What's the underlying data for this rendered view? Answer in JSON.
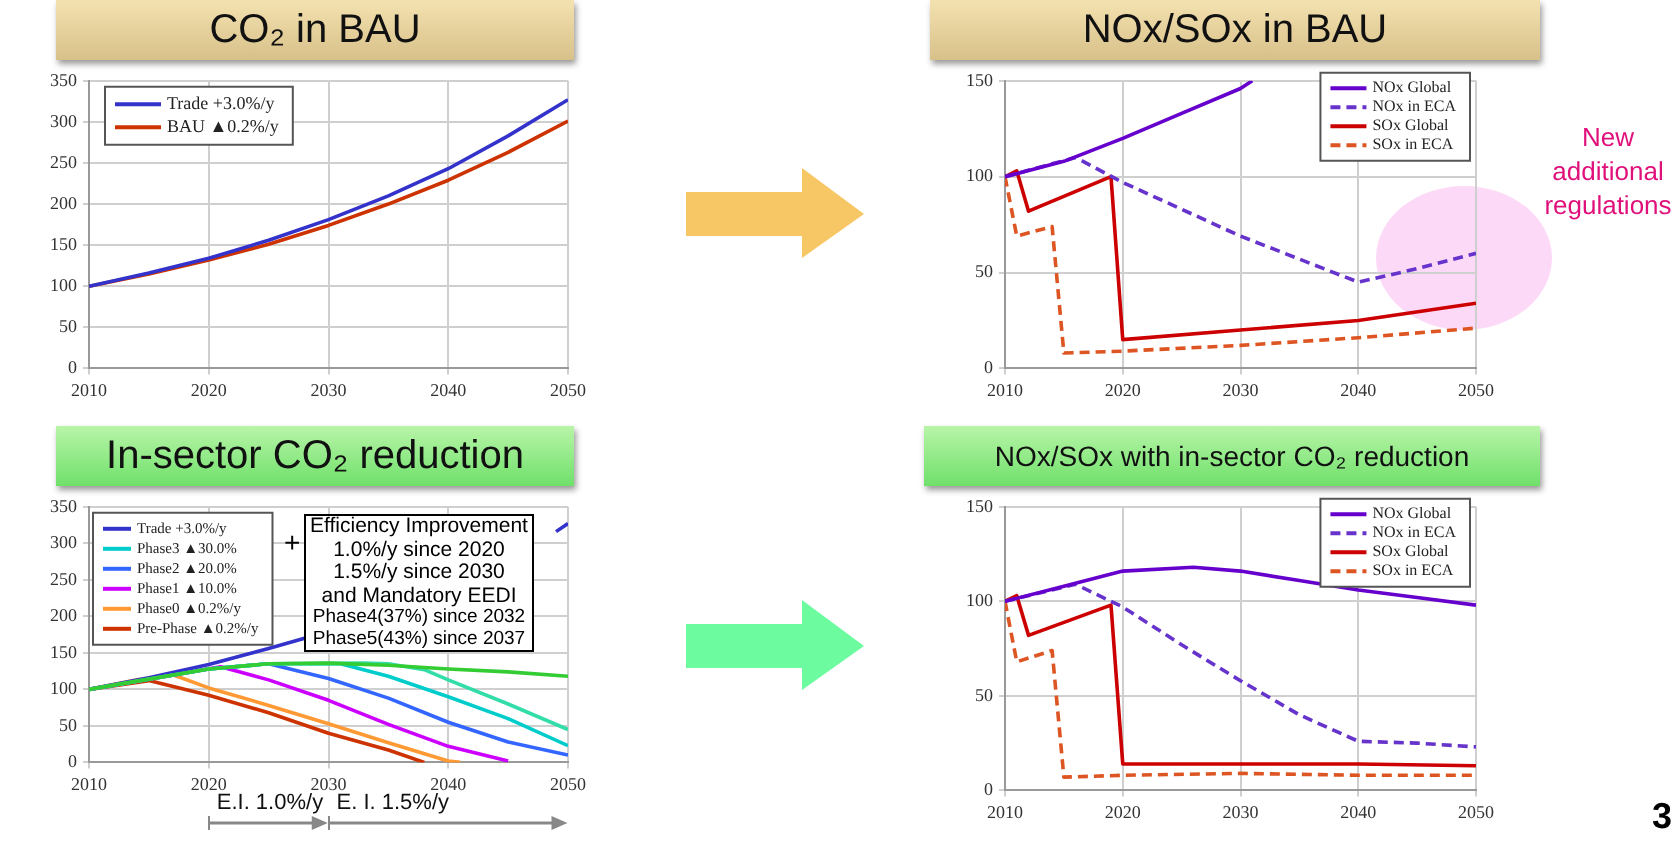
{
  "chart_data": [
    {
      "type": "line",
      "title": "CO₂ in BAU",
      "xlim": [
        2010,
        2050
      ],
      "ylim": [
        0,
        350
      ],
      "xticks": [
        2010,
        2020,
        2030,
        2040,
        2050
      ],
      "yticks": [
        0,
        50,
        100,
        150,
        200,
        250,
        300,
        350
      ],
      "grid": true,
      "legend": "top left",
      "series": [
        {
          "name": "Trade +3.0%/y",
          "color": "#3333cc",
          "x": [
            2010,
            2015,
            2020,
            2025,
            2030,
            2035,
            2040,
            2045,
            2050
          ],
          "values": [
            100,
            116,
            134,
            156,
            181,
            210,
            243,
            283,
            327
          ]
        },
        {
          "name": "BAU ▲0.2%/y",
          "color": "#cc3300",
          "x": [
            2010,
            2015,
            2020,
            2025,
            2030,
            2035,
            2040,
            2045,
            2050
          ],
          "values": [
            100,
            115,
            132,
            151,
            174,
            200,
            229,
            263,
            301
          ]
        }
      ]
    },
    {
      "type": "line",
      "title": "NOx/SOx  in BAU",
      "xlim": [
        2010,
        2050
      ],
      "ylim": [
        0,
        150
      ],
      "xticks": [
        2010,
        2020,
        2030,
        2040,
        2050
      ],
      "yticks": [
        0,
        50,
        100,
        150
      ],
      "grid": true,
      "legend": "top right",
      "annotations": [
        "New additional regulations"
      ],
      "series": [
        {
          "name": "NOx Global",
          "color": "#6600cc",
          "line_style": "solid",
          "x": [
            2010,
            2015,
            2020,
            2025,
            2030,
            2031
          ],
          "values": [
            100,
            108,
            120,
            133,
            146,
            150
          ]
        },
        {
          "name": "NOx in ECA",
          "color": "#6633cc",
          "line_style": "dashed",
          "x": [
            2010,
            2016,
            2020,
            2025,
            2030,
            2035,
            2040,
            2045,
            2050
          ],
          "values": [
            100,
            110,
            97,
            83,
            69,
            57,
            45,
            52,
            60
          ]
        },
        {
          "name": "SOx Global",
          "color": "#cc0000",
          "line_style": "solid",
          "x": [
            2010,
            2011,
            2012,
            2019,
            2020,
            2030,
            2040,
            2050
          ],
          "values": [
            100,
            103,
            82,
            100,
            15,
            20,
            25,
            34
          ]
        },
        {
          "name": "SOx in ECA",
          "color": "#dd5522",
          "line_style": "dashed",
          "x": [
            2010,
            2011,
            2014,
            2015,
            2020,
            2030,
            2040,
            2050
          ],
          "values": [
            100,
            69,
            74,
            8,
            9,
            12,
            16,
            21
          ]
        }
      ]
    },
    {
      "type": "line",
      "title": "In-sector CO₂ reduction",
      "xlim": [
        2010,
        2050
      ],
      "ylim": [
        0,
        350
      ],
      "xticks": [
        2010,
        2020,
        2030,
        2040,
        2050
      ],
      "yticks": [
        0,
        50,
        100,
        150,
        200,
        250,
        300,
        350
      ],
      "grid": true,
      "legend": "top left",
      "annotations": [
        "+",
        "Efficiency Improvement",
        "1.0%/y since 2020",
        "1.5%/y since 2030",
        "and Mandatory EEDI",
        "Phase4(37%) since 2032",
        "Phase5(43%) since 2037",
        "E.I. 1.0%/y",
        "E. I. 1.5%/y"
      ],
      "series": [
        {
          "color": "#33cc33",
          "x": [
            2010,
            2015,
            2020,
            2025,
            2030,
            2035,
            2040,
            2045,
            2050
          ],
          "values": [
            100,
            114,
            128,
            135,
            136,
            133,
            128,
            124,
            118
          ]
        },
        {
          "color": "#33ddaa",
          "x": [
            2010,
            2015,
            2020,
            2025,
            2033,
            2035,
            2038,
            2040,
            2045,
            2050
          ],
          "values": [
            100,
            114,
            128,
            135,
            136,
            135,
            127,
            113,
            80,
            45
          ]
        },
        {
          "name": "Trade +3.0%/y",
          "color": "#3333cc",
          "x": [
            2010,
            2015,
            2020,
            2025,
            2028,
            2038,
            2049,
            2050
          ],
          "values": [
            100,
            116,
            134,
            156,
            170,
            null,
            316,
            327
          ]
        },
        {
          "name": "Phase3 ▲30.0%",
          "color": "#00cccc",
          "x": [
            2020,
            2025,
            2031,
            2035,
            2040,
            2045,
            2050
          ],
          "values": [
            128,
            135,
            135,
            118,
            90,
            60,
            23
          ]
        },
        {
          "name": "Phase2 ▲20.0%",
          "color": "#3366ff",
          "x": [
            2010,
            2015,
            2020,
            2025,
            2030,
            2035,
            2040,
            2045,
            2050
          ],
          "values": [
            100,
            114,
            128,
            135,
            115,
            88,
            55,
            28,
            10
          ]
        },
        {
          "name": "Phase1 ▲10.0%",
          "color": "#cc00ff",
          "x": [
            2010,
            2015,
            2021,
            2025,
            2030,
            2035,
            2040,
            2045
          ],
          "values": [
            100,
            114,
            131,
            113,
            85,
            52,
            22,
            2
          ]
        },
        {
          "name": "Phase0 ▲0.2%/y",
          "color": "#ff9933",
          "x": [
            2010,
            2014,
            2017,
            2020,
            2025,
            2030,
            2035,
            2040,
            2041
          ],
          "values": [
            100,
            113,
            120,
            102,
            78,
            53,
            27,
            2,
            0
          ]
        },
        {
          "name": "Pre-Phase ▲0.2%/y",
          "color": "#cc3300",
          "x": [
            2010,
            2015,
            2020,
            2025,
            2030,
            2035,
            2038
          ],
          "values": [
            100,
            112,
            92,
            68,
            40,
            17,
            0
          ]
        }
      ]
    },
    {
      "type": "line",
      "title": "NOx/SOx with in-sector CO₂ reduction",
      "xlim": [
        2010,
        2050
      ],
      "ylim": [
        0,
        150
      ],
      "xticks": [
        2010,
        2020,
        2030,
        2040,
        2050
      ],
      "yticks": [
        0,
        50,
        100,
        150
      ],
      "grid": true,
      "legend": "top right",
      "annotations": [
        "3"
      ],
      "series": [
        {
          "name": "NOx Global",
          "color": "#6600cc",
          "line_style": "solid",
          "x": [
            2010,
            2015,
            2020,
            2026,
            2030,
            2035,
            2040,
            2045,
            2050
          ],
          "values": [
            100,
            108,
            116,
            118,
            116,
            111,
            106,
            102,
            98
          ]
        },
        {
          "name": "NOx in ECA",
          "color": "#6633cc",
          "line_style": "dashed",
          "x": [
            2010,
            2016,
            2020,
            2025,
            2030,
            2035,
            2040,
            2045,
            2050
          ],
          "values": [
            100,
            109,
            97,
            77,
            58,
            40,
            26,
            25,
            23
          ]
        },
        {
          "name": "SOx Global",
          "color": "#cc0000",
          "line_style": "solid",
          "x": [
            2010,
            2011,
            2012,
            2019,
            2020,
            2030,
            2040,
            2050
          ],
          "values": [
            100,
            103,
            82,
            98,
            14,
            14,
            14,
            13
          ]
        },
        {
          "name": "SOx in ECA",
          "color": "#dd5522",
          "line_style": "dashed",
          "x": [
            2010,
            2011,
            2014,
            2015,
            2020,
            2030,
            2040,
            2050
          ],
          "values": [
            100,
            68,
            74,
            7,
            8,
            9,
            8,
            8
          ]
        }
      ]
    }
  ]
}
